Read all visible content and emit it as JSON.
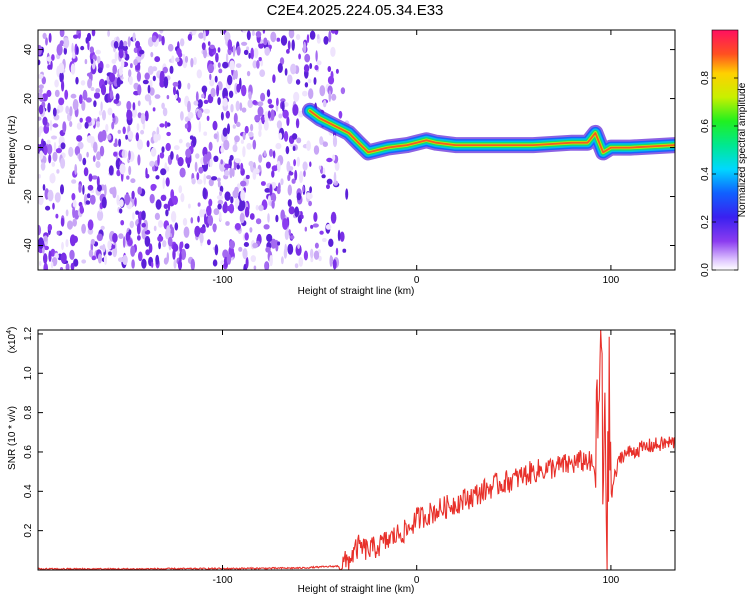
{
  "title": "C2E4.2025.224.05.34.E33",
  "colors": {
    "snr_line": "#e8302a",
    "spectro_trace_core": "#e0262c",
    "background_speckle": "#7a2fe6"
  },
  "chart_data": [
    {
      "type": "heatmap",
      "xlabel": "Height of straight line (km)",
      "ylabel": "Frequency (Hz)",
      "xlim": [
        -195,
        133
      ],
      "ylim": [
        -50,
        48
      ],
      "x_ticks": [
        -100,
        0,
        100
      ],
      "y_ticks": [
        -40,
        -20,
        0,
        20,
        40
      ],
      "colorbar": {
        "label": "Normalized spectral amplitude",
        "range": [
          0,
          1
        ],
        "ticks": [
          0.0,
          0.2,
          0.4,
          0.6,
          0.8
        ],
        "tick_labels": [
          "0.0",
          "0.2",
          "0.4",
          "0.6",
          "0.8"
        ]
      },
      "noise_region_x": [
        -195,
        -42
      ],
      "trace": {
        "x": [
          -55,
          -50,
          -45,
          -40,
          -35,
          -30,
          -25,
          -20,
          -15,
          -10,
          -5,
          0,
          5,
          10,
          20,
          40,
          60,
          80,
          88,
          92,
          96,
          100,
          110,
          133
        ],
        "y": [
          15,
          12,
          10,
          8,
          6,
          2,
          -2,
          -1,
          0,
          0.5,
          1,
          2,
          3,
          2,
          1,
          1,
          1,
          2,
          2,
          6,
          -2,
          0,
          0,
          1
        ]
      },
      "grid": false
    },
    {
      "type": "line",
      "xlabel": "Height of straight line (km)",
      "ylabel": "SNR (10 * v/v)",
      "y_multiplier_label": "(x10",
      "y_multiplier_exp": "4",
      "xlim": [
        -195,
        133
      ],
      "ylim": [
        0,
        1.22
      ],
      "x_ticks": [
        -100,
        0,
        100
      ],
      "y_ticks": [
        0.2,
        0.4,
        0.6,
        0.8,
        1.0,
        1.2
      ],
      "y_tick_labels": [
        "0.2",
        "0.4",
        "0.6",
        "0.8",
        "1.0",
        "1.2"
      ],
      "series": [
        {
          "x": [
            -195,
            -150,
            -100,
            -60,
            -40,
            -35,
            -30,
            -25,
            -20,
            -15,
            -10,
            -5,
            0,
            10,
            20,
            30,
            40,
            50,
            60,
            70,
            80,
            88,
            92,
            94,
            95,
            96,
            97,
            98,
            99,
            100,
            105,
            110,
            120,
            133
          ],
          "y": [
            0.005,
            0.005,
            0.007,
            0.01,
            0.02,
            0.05,
            0.12,
            0.1,
            0.12,
            0.15,
            0.18,
            0.2,
            0.26,
            0.3,
            0.34,
            0.38,
            0.43,
            0.46,
            0.5,
            0.52,
            0.54,
            0.56,
            0.5,
            0.9,
            1.22,
            0.3,
            1.05,
            0.05,
            0.9,
            0.4,
            0.58,
            0.6,
            0.63,
            0.65
          ]
        }
      ],
      "grid": false
    }
  ]
}
